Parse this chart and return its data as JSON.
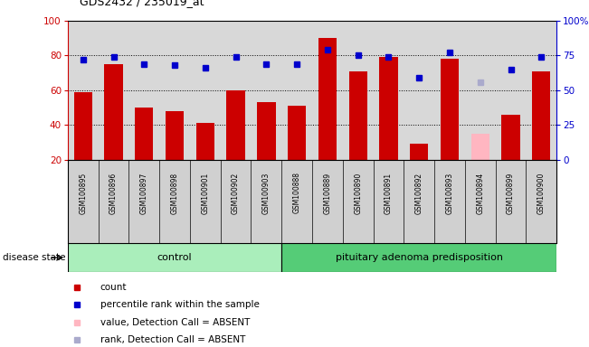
{
  "title": "GDS2432 / 235019_at",
  "samples": [
    "GSM100895",
    "GSM100896",
    "GSM100897",
    "GSM100898",
    "GSM100901",
    "GSM100902",
    "GSM100903",
    "GSM100888",
    "GSM100889",
    "GSM100890",
    "GSM100891",
    "GSM100892",
    "GSM100893",
    "GSM100894",
    "GSM100899",
    "GSM100900"
  ],
  "bar_values": [
    59,
    75,
    50,
    48,
    41,
    60,
    53,
    51,
    90,
    71,
    79,
    29,
    78,
    35,
    46,
    71
  ],
  "bar_colors": [
    "#cc0000",
    "#cc0000",
    "#cc0000",
    "#cc0000",
    "#cc0000",
    "#cc0000",
    "#cc0000",
    "#cc0000",
    "#cc0000",
    "#cc0000",
    "#cc0000",
    "#cc0000",
    "#cc0000",
    "#ffb6c1",
    "#cc0000",
    "#cc0000"
  ],
  "dot_values": [
    72,
    74,
    69,
    68,
    66,
    74,
    69,
    69,
    79,
    75,
    74,
    59,
    77,
    56,
    65,
    74
  ],
  "dot_colors": [
    "#0000cc",
    "#0000cc",
    "#0000cc",
    "#0000cc",
    "#0000cc",
    "#0000cc",
    "#0000cc",
    "#0000cc",
    "#0000cc",
    "#0000cc",
    "#0000cc",
    "#0000cc",
    "#0000cc",
    "#aaaacc",
    "#0000cc",
    "#0000cc"
  ],
  "control_count": 7,
  "disease_count": 9,
  "ylim_left": [
    20,
    100
  ],
  "ylim_right": [
    0,
    100
  ],
  "yticks_left": [
    20,
    40,
    60,
    80,
    100
  ],
  "ytick_labels_right": [
    "0",
    "25",
    "50",
    "75",
    "100%"
  ],
  "grid_values": [
    40,
    60,
    80
  ],
  "control_label": "control",
  "disease_label": "pituitary adenoma predisposition",
  "disease_state_label": "disease state",
  "legend_items": [
    {
      "label": "count",
      "color": "#cc0000"
    },
    {
      "label": "percentile rank within the sample",
      "color": "#0000cc"
    },
    {
      "label": "value, Detection Call = ABSENT",
      "color": "#ffb6c1"
    },
    {
      "label": "rank, Detection Call = ABSENT",
      "color": "#aaaacc"
    }
  ],
  "plot_bg": "#d8d8d8",
  "label_bg": "#d0d0d0",
  "control_bg": "#aaeebb",
  "disease_bg": "#55cc77",
  "white_bg": "#ffffff"
}
